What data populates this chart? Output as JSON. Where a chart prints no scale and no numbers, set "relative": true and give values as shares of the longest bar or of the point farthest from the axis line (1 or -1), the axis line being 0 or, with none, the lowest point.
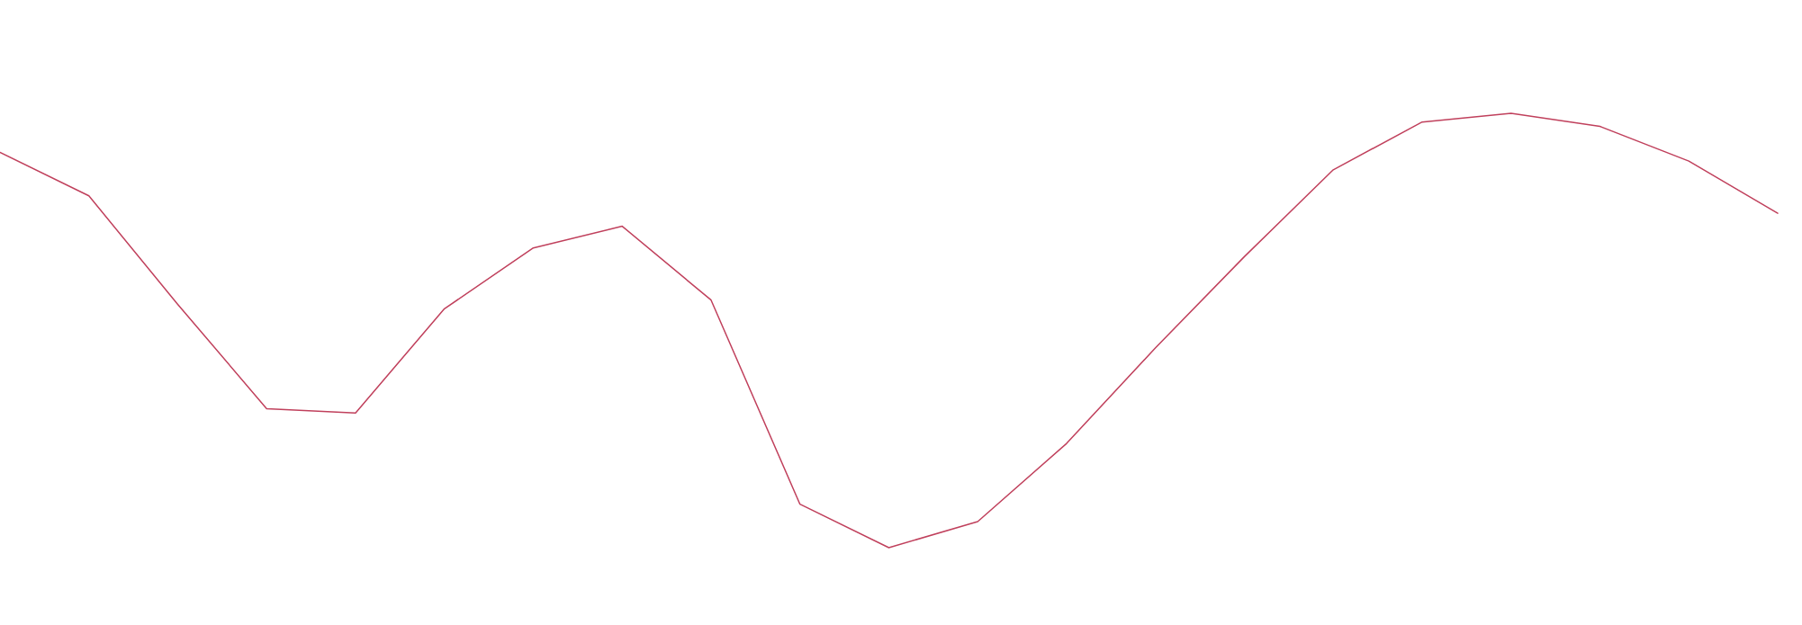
{
  "chart_data": {
    "type": "line",
    "relative": true,
    "categories": [
      null,
      null,
      null,
      null,
      null,
      null,
      null,
      null,
      null,
      null,
      null,
      null,
      null,
      null,
      null,
      null,
      null,
      null,
      null,
      null,
      null
    ],
    "series": [
      {
        "values": [
          0.91,
          0.81,
          0.56,
          0.32,
          0.31,
          0.55,
          0.69,
          0.74,
          0.57,
          0.1,
          0,
          0.06,
          0.24,
          0.46,
          0.67,
          0.87,
          0.98,
          1,
          0.97,
          0.89,
          0.77
        ],
        "color": "#c0405c"
      }
    ],
    "marker": "none",
    "line_style": "solid"
  }
}
